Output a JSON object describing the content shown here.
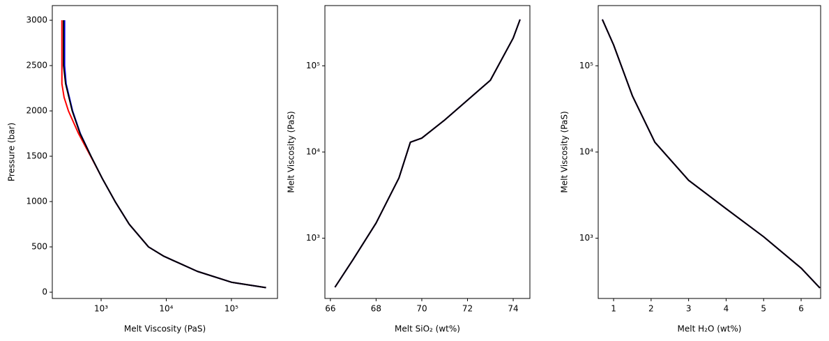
{
  "chart_data": [
    {
      "type": "line",
      "xscale": "log",
      "yscale": "linear",
      "xlabel": "Melt Viscosity (PaS)",
      "ylabel": "Pressure (bar)",
      "xlim": [
        178,
        510000
      ],
      "ylim": [
        -69,
        3162
      ],
      "xticks": [
        {
          "value": 1000,
          "label": "10³"
        },
        {
          "value": 10000,
          "label": "10⁴"
        },
        {
          "value": 100000,
          "label": "10⁵"
        }
      ],
      "yticks": [
        0,
        500,
        1000,
        1500,
        2000,
        2500,
        3000
      ],
      "series": [
        {
          "color": "red",
          "x": [
            250,
            250,
            270,
            315,
            450,
            690,
            1050,
            1640,
            2700,
            5340,
            9000,
            12800,
            30000,
            100000,
            340000
          ],
          "values": [
            3000,
            2300,
            2150,
            2000,
            1750,
            1500,
            1250,
            1000,
            750,
            500,
            400,
            350,
            230,
            110,
            50
          ]
        },
        {
          "color": "blue",
          "x": [
            275,
            275,
            290,
            365,
            480,
            700,
            1050,
            1640,
            2700,
            5340,
            9000,
            12800,
            30000,
            100000,
            340000
          ],
          "values": [
            3000,
            2500,
            2300,
            2000,
            1750,
            1500,
            1250,
            1000,
            750,
            500,
            400,
            350,
            230,
            110,
            50
          ]
        },
        {
          "color": "black",
          "x": [
            265,
            265,
            285,
            360,
            475,
            700,
            1050,
            1640,
            2700,
            5340,
            9000,
            12800,
            30000,
            100000,
            340000
          ],
          "values": [
            3000,
            2500,
            2300,
            2000,
            1750,
            1500,
            1250,
            1000,
            750,
            500,
            400,
            350,
            230,
            110,
            50
          ]
        }
      ]
    },
    {
      "type": "line",
      "xscale": "linear",
      "yscale": "log",
      "xlabel": "Melt SiO₂ (wt%)",
      "ylabel": "Melt Viscosity (PaS)",
      "xlim": [
        65.76,
        74.73
      ],
      "ylim": [
        200,
        500000
      ],
      "xticks": [
        66,
        68,
        70,
        72,
        74
      ],
      "yticks": [
        {
          "value": 1000,
          "label": "10³"
        },
        {
          "value": 10000,
          "label": "10⁴"
        },
        {
          "value": 100000,
          "label": "10⁵"
        }
      ],
      "series": [
        {
          "color": "red",
          "x": [
            66.2,
            67,
            68,
            69,
            69.5,
            70,
            71,
            72,
            73,
            74,
            74.3
          ],
          "values": [
            270,
            570,
            1500,
            5000,
            13000,
            14500,
            23500,
            40000,
            68000,
            210000,
            345000
          ]
        },
        {
          "color": "blue",
          "x": [
            66.2,
            67,
            68,
            69,
            69.5,
            70,
            71,
            72,
            73,
            74,
            74.3
          ],
          "values": [
            270,
            570,
            1500,
            5000,
            13000,
            14500,
            23500,
            40000,
            68000,
            210000,
            345000
          ]
        },
        {
          "color": "black",
          "x": [
            66.2,
            67,
            68,
            69,
            69.5,
            70,
            71,
            72,
            73,
            74,
            74.3
          ],
          "values": [
            270,
            570,
            1500,
            5000,
            13000,
            14500,
            23500,
            40000,
            68000,
            210000,
            345000
          ]
        }
      ]
    },
    {
      "type": "line",
      "xscale": "linear",
      "yscale": "log",
      "xlabel": "Melt H₂O (wt%)",
      "ylabel": "Melt Viscosity (PaS)",
      "xlim": [
        0.59,
        6.52
      ],
      "ylim": [
        200,
        500000
      ],
      "xticks": [
        1,
        2,
        3,
        4,
        5,
        6
      ],
      "yticks": [
        {
          "value": 1000,
          "label": "10³"
        },
        {
          "value": 10000,
          "label": "10⁴"
        },
        {
          "value": 100000,
          "label": "10⁵"
        }
      ],
      "series": [
        {
          "color": "red",
          "x": [
            0.7,
            1,
            1.5,
            2.1,
            3,
            4,
            5,
            6,
            6.5
          ],
          "values": [
            345000,
            175000,
            45000,
            13000,
            4700,
            2200,
            1040,
            450,
            265
          ]
        },
        {
          "color": "blue",
          "x": [
            0.7,
            1,
            1.5,
            2.1,
            3,
            4,
            5,
            6,
            6.5
          ],
          "values": [
            345000,
            175000,
            45000,
            13000,
            4700,
            2200,
            1040,
            450,
            265
          ]
        },
        {
          "color": "black",
          "x": [
            0.7,
            1,
            1.5,
            2.1,
            3,
            4,
            5,
            6,
            6.5
          ],
          "values": [
            345000,
            175000,
            45000,
            13000,
            4700,
            2200,
            1040,
            450,
            265
          ]
        }
      ]
    }
  ]
}
